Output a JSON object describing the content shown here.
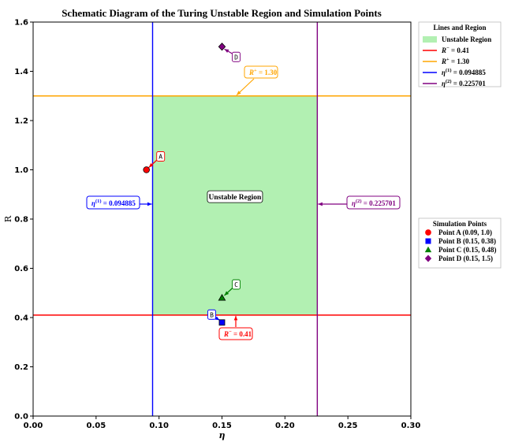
{
  "chart_data": {
    "type": "line",
    "title": "Schematic Diagram of the Turing Unstable Region and Simulation Points",
    "xlabel": "η",
    "ylabel": "R",
    "xlim": [
      0.0,
      0.3
    ],
    "ylim": [
      0.0,
      1.6
    ],
    "x_ticks": [
      "0.00",
      "0.05",
      "0.10",
      "0.15",
      "0.20",
      "0.25",
      "0.30"
    ],
    "y_ticks": [
      "0.0",
      "0.2",
      "0.4",
      "0.6",
      "0.8",
      "1.0",
      "1.2",
      "1.4",
      "1.6"
    ],
    "region": {
      "label": "Unstable Region",
      "x": [
        0.094885,
        0.225701
      ],
      "y": [
        0.41,
        1.3
      ],
      "color": "#b2f0b2"
    },
    "hlines": [
      {
        "name": "R^- = 0.41",
        "y": 0.41,
        "color": "#ff0000",
        "annotation": "= 0.41"
      },
      {
        "name": "R^+ = 1.30",
        "y": 1.3,
        "color": "#ffa500",
        "annotation": "= 1.30"
      }
    ],
    "vlines": [
      {
        "name": "η^(1) = 0.094885",
        "x": 0.094885,
        "color": "#0000ff",
        "annotation": "= 0.094885",
        "sup": "(1)"
      },
      {
        "name": "η^(2) = 0.225701",
        "x": 0.225701,
        "color": "#800080",
        "annotation": "= 0.225701",
        "sup": "(2)"
      }
    ],
    "points": [
      {
        "label": "A",
        "legend": "Point A (0.09, 1.0)",
        "x": 0.09,
        "y": 1.0,
        "marker": "circle",
        "color": "#ff0000",
        "edge": "#000000"
      },
      {
        "label": "B",
        "legend": "Point B (0.15, 0.38)",
        "x": 0.15,
        "y": 0.38,
        "marker": "square",
        "color": "#0000ff",
        "edge": "#000000"
      },
      {
        "label": "C",
        "legend": "Point C (0.15, 0.48)",
        "x": 0.15,
        "y": 0.48,
        "marker": "triangle",
        "color": "#008000",
        "edge": "#000000"
      },
      {
        "label": "D",
        "legend": "Point D (0.15, 1.5)",
        "x": 0.15,
        "y": 1.5,
        "marker": "diamond",
        "color": "#800080",
        "edge": "#000000"
      }
    ],
    "legend_lines": {
      "title": "Lines and Region",
      "entries": [
        {
          "label": "Unstable Region",
          "kind": "patch",
          "color": "#b2f0b2"
        },
        {
          "label": "= 0.41",
          "kind": "line",
          "color": "#ff0000",
          "sym": "R",
          "sup": "−"
        },
        {
          "label": "= 1.30",
          "kind": "line",
          "color": "#ffa500",
          "sym": "R",
          "sup": "+"
        },
        {
          "label": "= 0.094885",
          "kind": "line",
          "color": "#0000ff",
          "sym": "η",
          "sup": "(1)"
        },
        {
          "label": "= 0.225701",
          "kind": "line",
          "color": "#800080",
          "sym": "η",
          "sup": "(2)"
        }
      ]
    },
    "legend_points": {
      "title": "Simulation Points"
    }
  }
}
